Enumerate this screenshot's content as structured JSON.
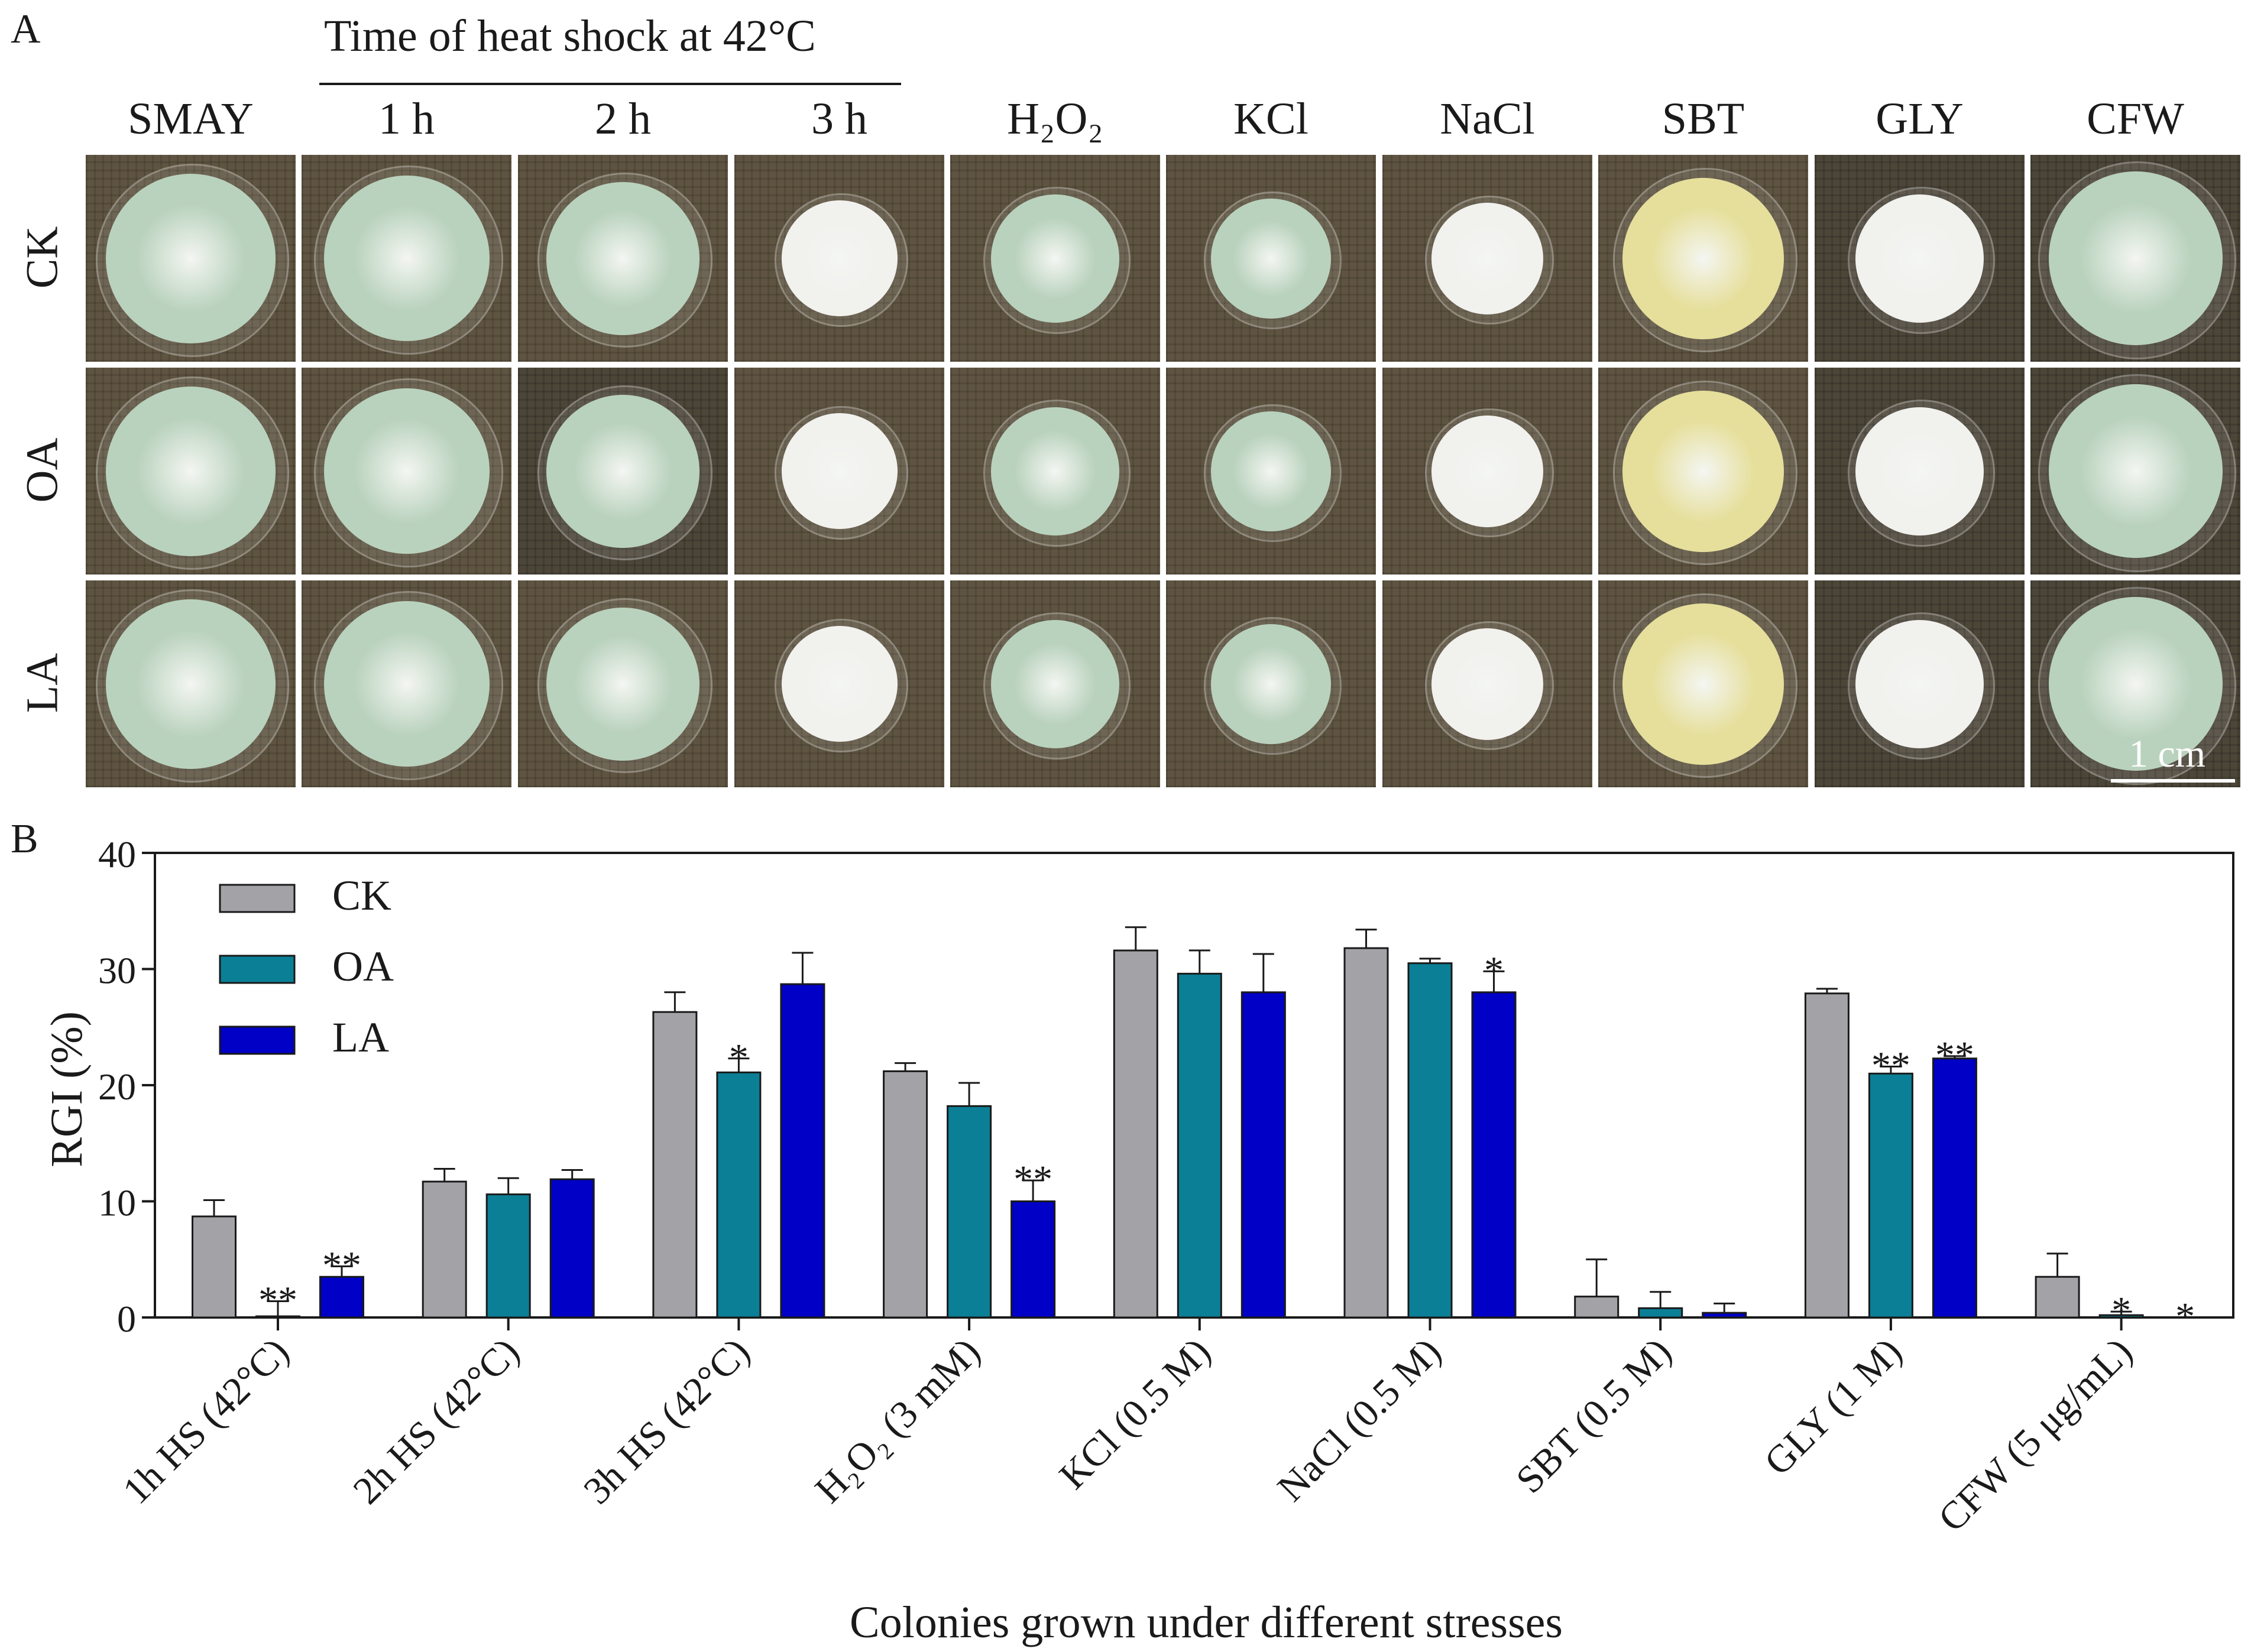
{
  "panel_a": {
    "letter": "A",
    "heat_shock_title": "Time of heat shock at 42°C",
    "columns": [
      "SMAY",
      "1 h",
      "2 h",
      "3 h",
      "H₂O₂",
      "KCl",
      "NaCl",
      "SBT",
      "GLY",
      "CFW"
    ],
    "rows": [
      "CK",
      "OA",
      "LA"
    ],
    "scale_bar_label": "1 cm",
    "colony_colors": {
      "green": "#b9d2bd",
      "white": "#f1f1ee",
      "yellow": "#e6df9c",
      "rim": "#d8b9b3"
    }
  },
  "chart_data": {
    "panel_letter": "B",
    "type": "bar",
    "title": "",
    "xlabel": "Colonies grown under different stresses",
    "ylabel": "RGI (%)",
    "ylim": [
      0,
      40
    ],
    "yticks": [
      "0",
      "10",
      "20",
      "30",
      "40"
    ],
    "categories": [
      "1h HS (42°C)",
      "2h HS (42°C)",
      "3h HS (42°C)",
      "H₂O₂ (3 mM)",
      "KCl (0.5 M)",
      "NaCl (0.5 M)",
      "SBT (0.5 M)",
      "GLY (1 M)",
      "CFW (5 μg/mL)"
    ],
    "legend": {
      "placement": "top-left"
    },
    "series": [
      {
        "name": "CK",
        "color": "#a3a3a7",
        "values": [
          8.7,
          11.7,
          26.3,
          21.2,
          31.6,
          31.8,
          1.8,
          27.9,
          3.5
        ],
        "errors": [
          1.4,
          1.1,
          1.7,
          0.7,
          2.0,
          1.6,
          3.2,
          0.4,
          2.0
        ],
        "sig": [
          "",
          "",
          "",
          "",
          "",
          "",
          "",
          "",
          ""
        ]
      },
      {
        "name": "OA",
        "color": "#0b7f95",
        "values": [
          0.1,
          10.6,
          21.1,
          18.2,
          29.6,
          30.5,
          0.8,
          21.0,
          0.2
        ],
        "errors": [
          1.3,
          1.4,
          1.2,
          2.0,
          2.0,
          0.4,
          1.4,
          0.6,
          0.3
        ],
        "sig": [
          "**",
          "",
          "*",
          "",
          "",
          "",
          "",
          "**",
          "*"
        ]
      },
      {
        "name": "LA",
        "color": "#0000c6",
        "values": [
          3.5,
          11.9,
          28.7,
          10.0,
          28.0,
          28.0,
          0.4,
          22.3,
          0.0
        ],
        "errors": [
          0.9,
          0.8,
          2.7,
          1.8,
          3.3,
          1.8,
          0.8,
          0.2,
          0.0
        ],
        "sig": [
          "**",
          "",
          "",
          "**",
          "",
          "*",
          "",
          "**",
          "*"
        ]
      }
    ]
  }
}
